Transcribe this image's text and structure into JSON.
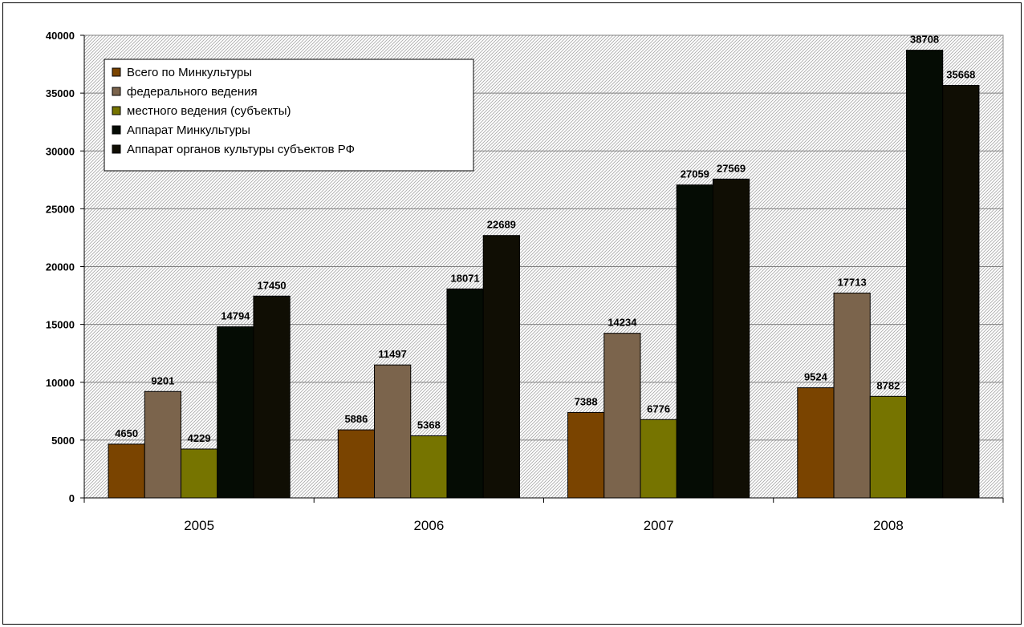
{
  "chart_data": {
    "type": "bar",
    "categories": [
      "2005",
      "2006",
      "2007",
      "2008"
    ],
    "series": [
      {
        "name": "Всего по Минкультуры",
        "color": "#7a4400",
        "values": [
          4650,
          5886,
          7388,
          9524
        ]
      },
      {
        "name": "федерального ведения",
        "color": "#7b644c",
        "values": [
          9201,
          11497,
          14234,
          17713
        ]
      },
      {
        "name": "местного ведения (субъекты)",
        "color": "#767400",
        "values": [
          4229,
          5368,
          6776,
          8782
        ]
      },
      {
        "name": "Аппарат Минкультуры",
        "color": "#050c04",
        "values": [
          14794,
          18071,
          27059,
          38708
        ]
      },
      {
        "name": "Аппарат органов культуры субъектов РФ",
        "color": "#100e04",
        "values": [
          17450,
          22689,
          27569,
          35668
        ]
      }
    ],
    "ylim": [
      0,
      40000
    ],
    "yticks": [
      0,
      5000,
      10000,
      15000,
      20000,
      25000,
      30000,
      35000,
      40000
    ],
    "grid": true,
    "legend_position": "top-left",
    "data_labels": true,
    "plot_background": "hatched",
    "title": "",
    "xlabel": "",
    "ylabel": ""
  }
}
